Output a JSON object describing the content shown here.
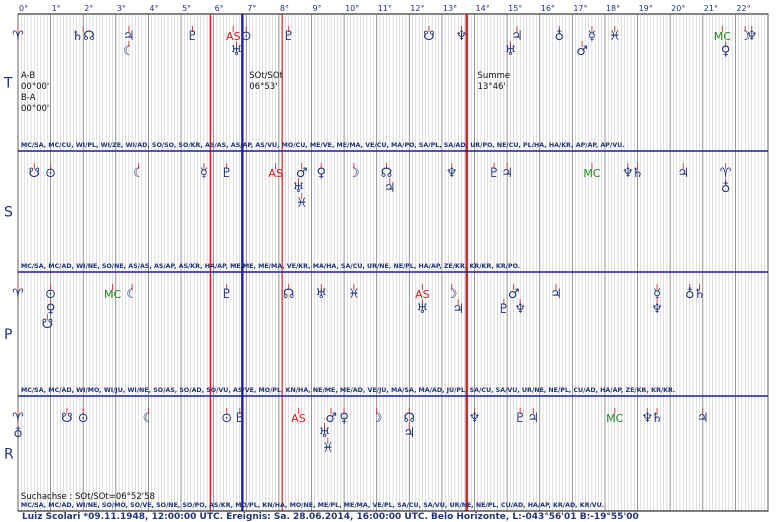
{
  "degree_labels": [
    "0°",
    "1°",
    "2°",
    "3°",
    "4°",
    "5°",
    "6°",
    "7°",
    "8°",
    "9°",
    "10°",
    "11°",
    "12°",
    "13°",
    "14°",
    "15°",
    "16°",
    "17°",
    "18°",
    "19°",
    "20°",
    "21°",
    "22°"
  ],
  "rows": [
    {
      "letter": "T",
      "glyphs": [
        {
          "deg": 0.0,
          "sym": "♈",
          "c": "#223377",
          "tick": "#d04040"
        },
        {
          "deg": 2.0,
          "sym": "♄☊",
          "c": "#223377",
          "tick": "#d04040"
        },
        {
          "deg": 3.4,
          "sym": "♃",
          "c": "#223377",
          "tick": "#d04040"
        },
        {
          "deg": 3.4,
          "sym": "☾",
          "c": "#223377",
          "tick": "#d04040",
          "lvl": 1
        },
        {
          "deg": 5.35,
          "sym": "♇",
          "c": "#223377",
          "tick": "#d04040"
        },
        {
          "deg": 6.6,
          "sym": "AS",
          "c": "#d42020",
          "tick": "#d04040"
        },
        {
          "deg": 7.0,
          "sym": "⊙",
          "c": "#223377",
          "tick": "#d04040"
        },
        {
          "deg": 6.7,
          "sym": "♅",
          "c": "#223377",
          "tick": "#d04040",
          "lvl": 1
        },
        {
          "deg": 8.3,
          "sym": "♇",
          "c": "#223377",
          "tick": "#d04040"
        },
        {
          "deg": 12.6,
          "sym": "☋",
          "c": "#223377",
          "tick": "#d04040"
        },
        {
          "deg": 13.6,
          "sym": "♆",
          "c": "#223377",
          "tick": "#d04040"
        },
        {
          "deg": 15.3,
          "sym": "♃",
          "c": "#223377",
          "tick": "#d04040"
        },
        {
          "deg": 15.1,
          "sym": "♅",
          "c": "#223377",
          "tick": "#d04040",
          "lvl": 1
        },
        {
          "deg": 16.6,
          "sym": "♁",
          "c": "#223377",
          "tick": "#d04040"
        },
        {
          "deg": 17.6,
          "sym": "☿",
          "c": "#223377",
          "tick": "#d04040"
        },
        {
          "deg": 17.3,
          "sym": "♂",
          "c": "#223377",
          "tick": "#d04040",
          "lvl": 1
        },
        {
          "deg": 18.3,
          "sym": "♓",
          "c": "#223377",
          "tick": "#d04040"
        },
        {
          "deg": 21.6,
          "sym": "MC",
          "c": "#1f8a1f",
          "tick": "#d04040"
        },
        {
          "deg": 21.7,
          "sym": "♀",
          "c": "#223377",
          "tick": "#d04040",
          "lvl": 1
        },
        {
          "deg": 22.3,
          "sym": "☽",
          "c": "#223377",
          "tick": "#d04040"
        },
        {
          "deg": 22.5,
          "sym": "♆",
          "c": "#223377",
          "tick": "#d04040"
        }
      ],
      "notes": [
        {
          "deg": 0.0,
          "lines": [
            "A-B",
            "00°00'",
            "B-A",
            "00°00'"
          ]
        },
        {
          "deg": 7.0,
          "lines": [
            "SOt/SOt",
            "06°53'"
          ]
        },
        {
          "deg": 14.0,
          "lines": [
            "Summe",
            "13°46'"
          ]
        }
      ],
      "midpoints": "MC/SA, MC/CU, WI/PL, WI/ZE, WI/AD, SO/SO, SO/KR, AS/AS, AS/AP, AS/VU, MO/CU, ME/VE, ME/MA, VE/CU, MA/PO, SA/PL, SA/AD, UR/PO, NE/CU, PL/HA, HA/KR, AP/AP, AP/VU."
    },
    {
      "letter": "S",
      "glyphs": [
        {
          "deg": 0.5,
          "sym": "☋",
          "c": "#223377",
          "tick": "#d04040"
        },
        {
          "deg": 1.0,
          "sym": "⊙",
          "c": "#223377",
          "tick": "#d04040"
        },
        {
          "deg": 3.7,
          "sym": "☾",
          "c": "#223377",
          "tick": "#d04040"
        },
        {
          "deg": 5.7,
          "sym": "☿",
          "c": "#223377",
          "tick": "#d04040"
        },
        {
          "deg": 6.4,
          "sym": "♇",
          "c": "#223377",
          "tick": "#d04040"
        },
        {
          "deg": 7.9,
          "sym": "AS",
          "c": "#d42020",
          "tick": "#d04040"
        },
        {
          "deg": 8.7,
          "sym": "♂",
          "c": "#223377",
          "tick": "#d04040"
        },
        {
          "deg": 9.3,
          "sym": "♀",
          "c": "#223377",
          "tick": "#d04040"
        },
        {
          "deg": 8.6,
          "sym": "♅",
          "c": "#223377",
          "tick": "#d04040",
          "lvl": 1
        },
        {
          "deg": 8.7,
          "sym": "♓",
          "c": "#223377",
          "tick": "#d04040",
          "lvl": 2
        },
        {
          "deg": 10.3,
          "sym": "☽",
          "c": "#223377",
          "tick": "#d04040"
        },
        {
          "deg": 11.3,
          "sym": "☊",
          "c": "#223377",
          "tick": "#d04040"
        },
        {
          "deg": 11.4,
          "sym": "♃",
          "c": "#223377",
          "tick": "#d04040",
          "lvl": 1
        },
        {
          "deg": 13.3,
          "sym": "♆",
          "c": "#223377",
          "tick": "#d04040"
        },
        {
          "deg": 14.6,
          "sym": "♇",
          "c": "#223377",
          "tick": "#d04040"
        },
        {
          "deg": 15.0,
          "sym": "♃",
          "c": "#223377",
          "tick": "#d04040"
        },
        {
          "deg": 17.6,
          "sym": "MC",
          "c": "#1f8a1f",
          "tick": "#d04040"
        },
        {
          "deg": 18.7,
          "sym": "♆",
          "c": "#223377",
          "tick": "#d04040"
        },
        {
          "deg": 19.0,
          "sym": "♄",
          "c": "#223377",
          "tick": "#d04040"
        },
        {
          "deg": 20.4,
          "sym": "♃",
          "c": "#223377",
          "tick": "#d04040"
        },
        {
          "deg": 21.7,
          "sym": "♈",
          "c": "#223377",
          "tick": "#d04040"
        },
        {
          "deg": 21.7,
          "sym": "♁",
          "c": "#223377",
          "tick": "#d04040",
          "lvl": 1
        }
      ],
      "notes": [],
      "midpoints": "MC/SA, MC/AD, WI/NE, SO/NE, AS/AS, AS/AP, AS/KR, HA/AP, ME/ME, ME/MA, VE/KR, MA/HA, SA/CU, UR/NE, NE/PL, HA/AP, ZE/KR, KR/KR, KR/PO."
    },
    {
      "letter": "P",
      "glyphs": [
        {
          "deg": 0.0,
          "sym": "♈",
          "c": "#223377",
          "tick": "#d04040"
        },
        {
          "deg": 1.0,
          "sym": "⊙",
          "c": "#223377",
          "tick": "#d04040"
        },
        {
          "deg": 1.0,
          "sym": "♀",
          "c": "#223377",
          "tick": "#d04040",
          "lvl": 1
        },
        {
          "deg": 0.9,
          "sym": "☋",
          "c": "#223377",
          "tick": "#d04040",
          "lvl": 2
        },
        {
          "deg": 2.9,
          "sym": "MC",
          "c": "#1f8a1f",
          "tick": "#d04040"
        },
        {
          "deg": 3.5,
          "sym": "☾",
          "c": "#223377",
          "tick": "#d04040"
        },
        {
          "deg": 6.4,
          "sym": "♇",
          "c": "#223377",
          "tick": "#d04040"
        },
        {
          "deg": 8.3,
          "sym": "☊",
          "c": "#223377",
          "tick": "#d04040"
        },
        {
          "deg": 9.3,
          "sym": "♅",
          "c": "#223377",
          "tick": "#d04040"
        },
        {
          "deg": 10.3,
          "sym": "♓",
          "c": "#223377",
          "tick": "#d04040"
        },
        {
          "deg": 12.4,
          "sym": "AS",
          "c": "#d42020",
          "tick": "#d04040"
        },
        {
          "deg": 12.4,
          "sym": "♅",
          "c": "#223377",
          "tick": "#d04040",
          "lvl": 1
        },
        {
          "deg": 13.3,
          "sym": "☽",
          "c": "#223377",
          "tick": "#d04040"
        },
        {
          "deg": 13.5,
          "sym": "♃",
          "c": "#223377",
          "tick": "#d04040",
          "lvl": 1
        },
        {
          "deg": 15.2,
          "sym": "♂",
          "c": "#223377",
          "tick": "#d04040"
        },
        {
          "deg": 14.9,
          "sym": "♇",
          "c": "#223377",
          "tick": "#d04040",
          "lvl": 1
        },
        {
          "deg": 15.4,
          "sym": "♆",
          "c": "#223377",
          "tick": "#d04040",
          "lvl": 1
        },
        {
          "deg": 16.5,
          "sym": "♃",
          "c": "#223377",
          "tick": "#d04040"
        },
        {
          "deg": 19.6,
          "sym": "☿",
          "c": "#223377",
          "tick": "#d04040"
        },
        {
          "deg": 19.6,
          "sym": "♆",
          "c": "#223377",
          "tick": "#d04040",
          "lvl": 1
        },
        {
          "deg": 20.6,
          "sym": "♁",
          "c": "#223377",
          "tick": "#d04040"
        },
        {
          "deg": 20.9,
          "sym": "♄",
          "c": "#223377",
          "tick": "#d04040"
        }
      ],
      "notes": [],
      "midpoints": "MC/SA, MC/AD, WI/MO, WI/JU, WI/NE, SO/AS, SO/AD, SO/VU, AS/VE, MO/PL, KN/HA, NE/ME, ME/AD, VE/JU, MA/SA, MA/AD, JU/PL, SA/CU, SA/VU, UR/NE, NE/PL, CU/AD, HA/AP, ZE/KR, KR/KR."
    },
    {
      "letter": "R",
      "glyphs": [
        {
          "deg": 0.0,
          "sym": "♈",
          "c": "#223377",
          "tick": "#d04040"
        },
        {
          "deg": 0.0,
          "sym": "♁",
          "c": "#223377",
          "tick": "#d04040",
          "lvl": 1
        },
        {
          "deg": 1.5,
          "sym": "☋",
          "c": "#223377",
          "tick": "#d04040"
        },
        {
          "deg": 2.0,
          "sym": "⊙",
          "c": "#223377",
          "tick": "#d04040"
        },
        {
          "deg": 4.0,
          "sym": "☾",
          "c": "#223377",
          "tick": "#d04040"
        },
        {
          "deg": 6.4,
          "sym": "⊙",
          "c": "#223377",
          "tick": "#d04040"
        },
        {
          "deg": 6.8,
          "sym": "♇",
          "c": "#223377",
          "tick": "#d04040"
        },
        {
          "deg": 8.6,
          "sym": "AS",
          "c": "#d42020",
          "tick": "#d04040"
        },
        {
          "deg": 9.6,
          "sym": "♂",
          "c": "#223377",
          "tick": "#d04040"
        },
        {
          "deg": 10.0,
          "sym": "♀",
          "c": "#223377",
          "tick": "#d04040"
        },
        {
          "deg": 9.4,
          "sym": "♅",
          "c": "#223377",
          "tick": "#d04040",
          "lvl": 1
        },
        {
          "deg": 9.5,
          "sym": "♓",
          "c": "#223377",
          "tick": "#d04040",
          "lvl": 2
        },
        {
          "deg": 11.0,
          "sym": "☽",
          "c": "#223377",
          "tick": "#d04040"
        },
        {
          "deg": 12.0,
          "sym": "☊",
          "c": "#223377",
          "tick": "#d04040"
        },
        {
          "deg": 12.0,
          "sym": "♃",
          "c": "#223377",
          "tick": "#d04040",
          "lvl": 1
        },
        {
          "deg": 14.0,
          "sym": "♆",
          "c": "#223377",
          "tick": "#d04040"
        },
        {
          "deg": 15.4,
          "sym": "♇",
          "c": "#223377",
          "tick": "#d04040"
        },
        {
          "deg": 15.8,
          "sym": "♃",
          "c": "#223377",
          "tick": "#d04040"
        },
        {
          "deg": 18.3,
          "sym": "MC",
          "c": "#1f8a1f",
          "tick": "#d04040"
        },
        {
          "deg": 19.3,
          "sym": "♆",
          "c": "#223377",
          "tick": "#d04040"
        },
        {
          "deg": 19.6,
          "sym": "♄",
          "c": "#223377",
          "tick": "#d04040"
        },
        {
          "deg": 21.0,
          "sym": "♃",
          "c": "#223377",
          "tick": "#d04040"
        }
      ],
      "notes": [
        {
          "deg": 0.0,
          "bottom": true,
          "lines": [
            "Suchachse : SOt/SOt=06°52'58"
          ]
        }
      ],
      "midpoints": "MC/SA, MC/AD, WI/NE, SO/MO, SO/VE, SO/NE, SO/PO, AS/KR, MO/PL, KN/HA, MO/NE, ME/PL, ME/MA, VE/PL, SA/CU, SA/VU, UR/NE, NE/PL, CU/AD, HA/AP, KR/AD, KR/VU."
    }
  ],
  "footer": "Luiz Scolari   *09.11.1948, 12:00:00 UTC. Ereignis: Sa. 28.06.2014, 16:00:00 UTC. Belo Horizonte, L:-043°56'01 B:-19°55'00",
  "colors": {
    "border": "#223377",
    "red": "#d42020",
    "blue": "#2a2aa0",
    "green": "#1f8a1f",
    "grid": "#bdbdbd"
  }
}
